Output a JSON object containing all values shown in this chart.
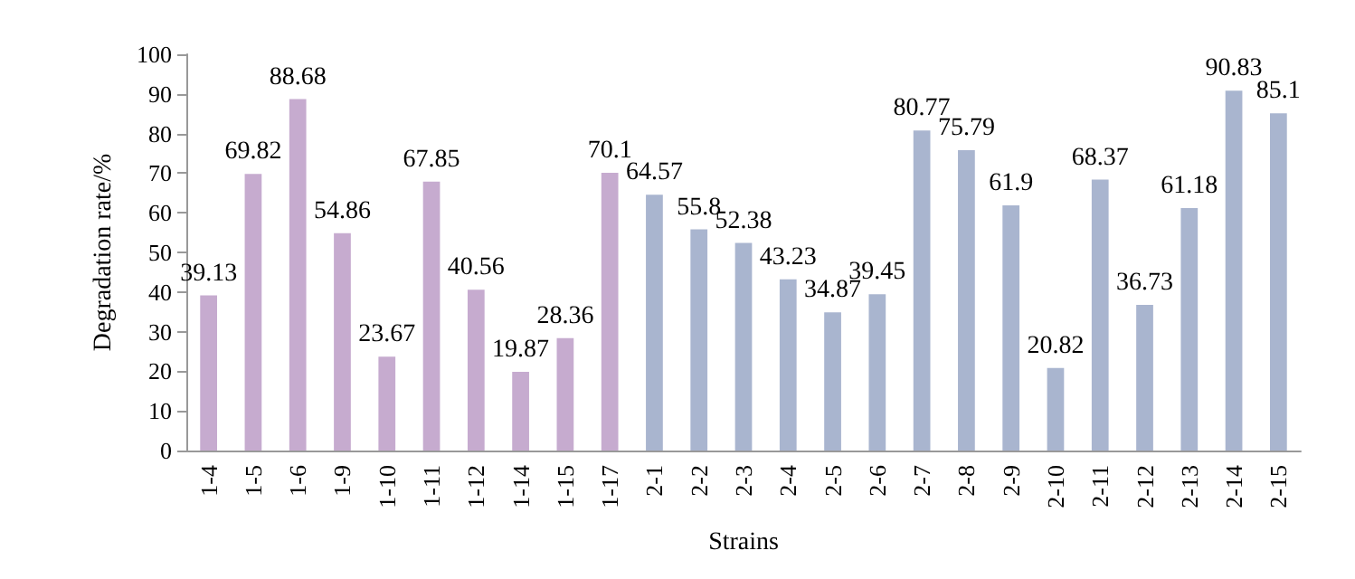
{
  "chart_data": {
    "type": "bar",
    "xlabel": "Strains",
    "ylabel": "Degradation rate/%",
    "categories": [
      "1-4",
      "1-5",
      "1-6",
      "1-9",
      "1-10",
      "1-11",
      "1-12",
      "1-14",
      "1-15",
      "1-17",
      "2-1",
      "2-2",
      "2-3",
      "2-4",
      "2-5",
      "2-6",
      "2-7",
      "2-8",
      "2-9",
      "2-10",
      "2-11",
      "2-12",
      "2-13",
      "2-14",
      "2-15"
    ],
    "values": [
      39.13,
      69.82,
      88.68,
      54.86,
      23.67,
      67.85,
      40.56,
      19.87,
      28.36,
      70.1,
      64.57,
      55.8,
      52.38,
      43.23,
      34.87,
      39.45,
      80.77,
      75.79,
      61.9,
      20.82,
      68.37,
      36.73,
      61.18,
      90.83,
      85.1
    ],
    "colors": [
      "#c6abcf",
      "#c6abcf",
      "#c6abcf",
      "#c6abcf",
      "#c6abcf",
      "#c6abcf",
      "#c6abcf",
      "#c6abcf",
      "#c6abcf",
      "#c6abcf",
      "#a9b5cf",
      "#a9b5cf",
      "#a9b5cf",
      "#a9b5cf",
      "#a9b5cf",
      "#a9b5cf",
      "#a9b5cf",
      "#a9b5cf",
      "#a9b5cf",
      "#a9b5cf",
      "#a9b5cf",
      "#a9b5cf",
      "#a9b5cf",
      "#a9b5cf",
      "#a9b5cf"
    ],
    "ylim": [
      0,
      100
    ],
    "yticks": [
      0,
      10,
      20,
      30,
      40,
      50,
      60,
      70,
      80,
      90,
      100
    ],
    "data_labels": true
  }
}
